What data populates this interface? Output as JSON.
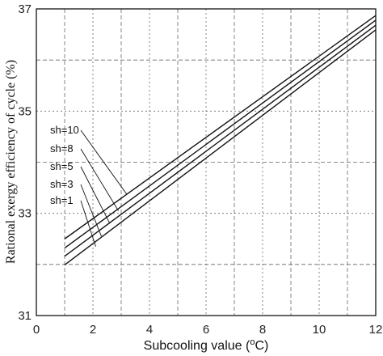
{
  "chart_data": {
    "type": "line",
    "xlabel_main": "Subcooling value (",
    "xlabel_sup": "o",
    "xlabel_unit": "C)",
    "ylabel_main": "Rational exergy efficiency of cycle (%)",
    "xlim": [
      0,
      12
    ],
    "ylim": [
      31,
      37
    ],
    "x_ticks": [
      "0",
      "2",
      "4",
      "6",
      "8",
      "10",
      "12"
    ],
    "y_ticks": [
      "31",
      "33",
      "35",
      "37"
    ],
    "grid": true,
    "series": [
      {
        "name": "sh=10",
        "x": [
          1,
          12
        ],
        "y": [
          32.5,
          36.87
        ]
      },
      {
        "name": "sh=8",
        "x": [
          1,
          12
        ],
        "y": [
          32.32,
          36.78
        ]
      },
      {
        "name": "sh=5",
        "x": [
          1,
          12
        ],
        "y": [
          32.16,
          36.68
        ]
      },
      {
        "name": "sh=3",
        "x": [
          1,
          12
        ],
        "y": [
          31.99,
          36.59
        ]
      }
    ],
    "annotations": [
      {
        "text": "sh=10",
        "point_x": 3.2,
        "point_y": 33.37
      },
      {
        "text": "sh=8",
        "point_x": 2.9,
        "point_y": 33.05
      },
      {
        "text": "sh=5",
        "point_x": 2.6,
        "point_y": 32.8
      },
      {
        "text": "sh=3",
        "point_x": 2.3,
        "point_y": 32.55
      },
      {
        "text": "sh=1",
        "point_x": 2.1,
        "point_y": 32.35
      }
    ]
  }
}
